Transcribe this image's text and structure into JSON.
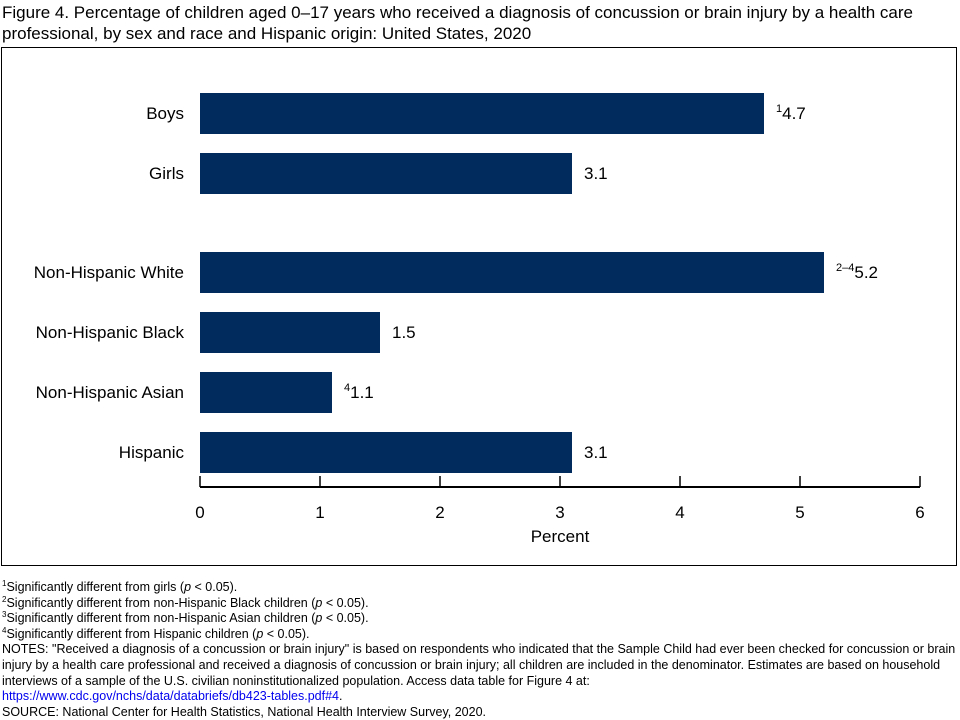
{
  "chart_data": {
    "type": "bar",
    "orientation": "horizontal",
    "title": "Figure 4. Percentage of children aged 0–17 years who received a diagnosis of concussion or brain injury by a health care professional, by sex and race and Hispanic origin: United States, 2020",
    "categories": [
      "Boys",
      "Girls",
      "Non-Hispanic White",
      "Non-Hispanic Black",
      "Non-Hispanic Asian",
      "Hispanic"
    ],
    "values": [
      4.7,
      3.1,
      5.2,
      1.5,
      1.1,
      3.1
    ],
    "value_labels": [
      "4.7",
      "3.1",
      "5.2",
      "1.5",
      "1.1",
      "3.1"
    ],
    "label_superscripts": [
      "1",
      "",
      "2–4",
      "",
      "4",
      ""
    ],
    "xlabel": "Percent",
    "xlim": [
      0,
      6
    ],
    "xticks": [
      "0",
      "1",
      "2",
      "3",
      "4",
      "5",
      "6"
    ],
    "grid": false,
    "bar_color": "#002b5c"
  },
  "footnotes": [
    {
      "mark": "1",
      "text_before": "Significantly different from girls (",
      "p": "p",
      "text_after": " < 0.05)."
    },
    {
      "mark": "2",
      "text_before": "Significantly different from non-Hispanic Black children (",
      "p": "p",
      "text_after": " < 0.05)."
    },
    {
      "mark": "3",
      "text_before": "Significantly different from non-Hispanic Asian children (",
      "p": "p",
      "text_after": " < 0.05)."
    },
    {
      "mark": "4",
      "text_before": "Significantly different from Hispanic children (",
      "p": "p",
      "text_after": " < 0.05)."
    }
  ],
  "notes": "NOTES: \"Received a diagnosis of a concussion or brain injury\" is based on respondents who indicated that the Sample Child had ever been checked for concussion or brain injury by a health care professional and received a diagnosis of concussion or brain injury; all children are included in the denominator. Estimates are based on household interviews of a sample of the U.S. civilian noninstitutionalized population. Access data table for Figure 4 at:",
  "link": "https://www.cdc.gov/nchs/data/databriefs/db423-tables.pdf#4",
  "link_suffix": ".",
  "source": "SOURCE: National Center for Health Statistics, National Health Interview Survey, 2020."
}
